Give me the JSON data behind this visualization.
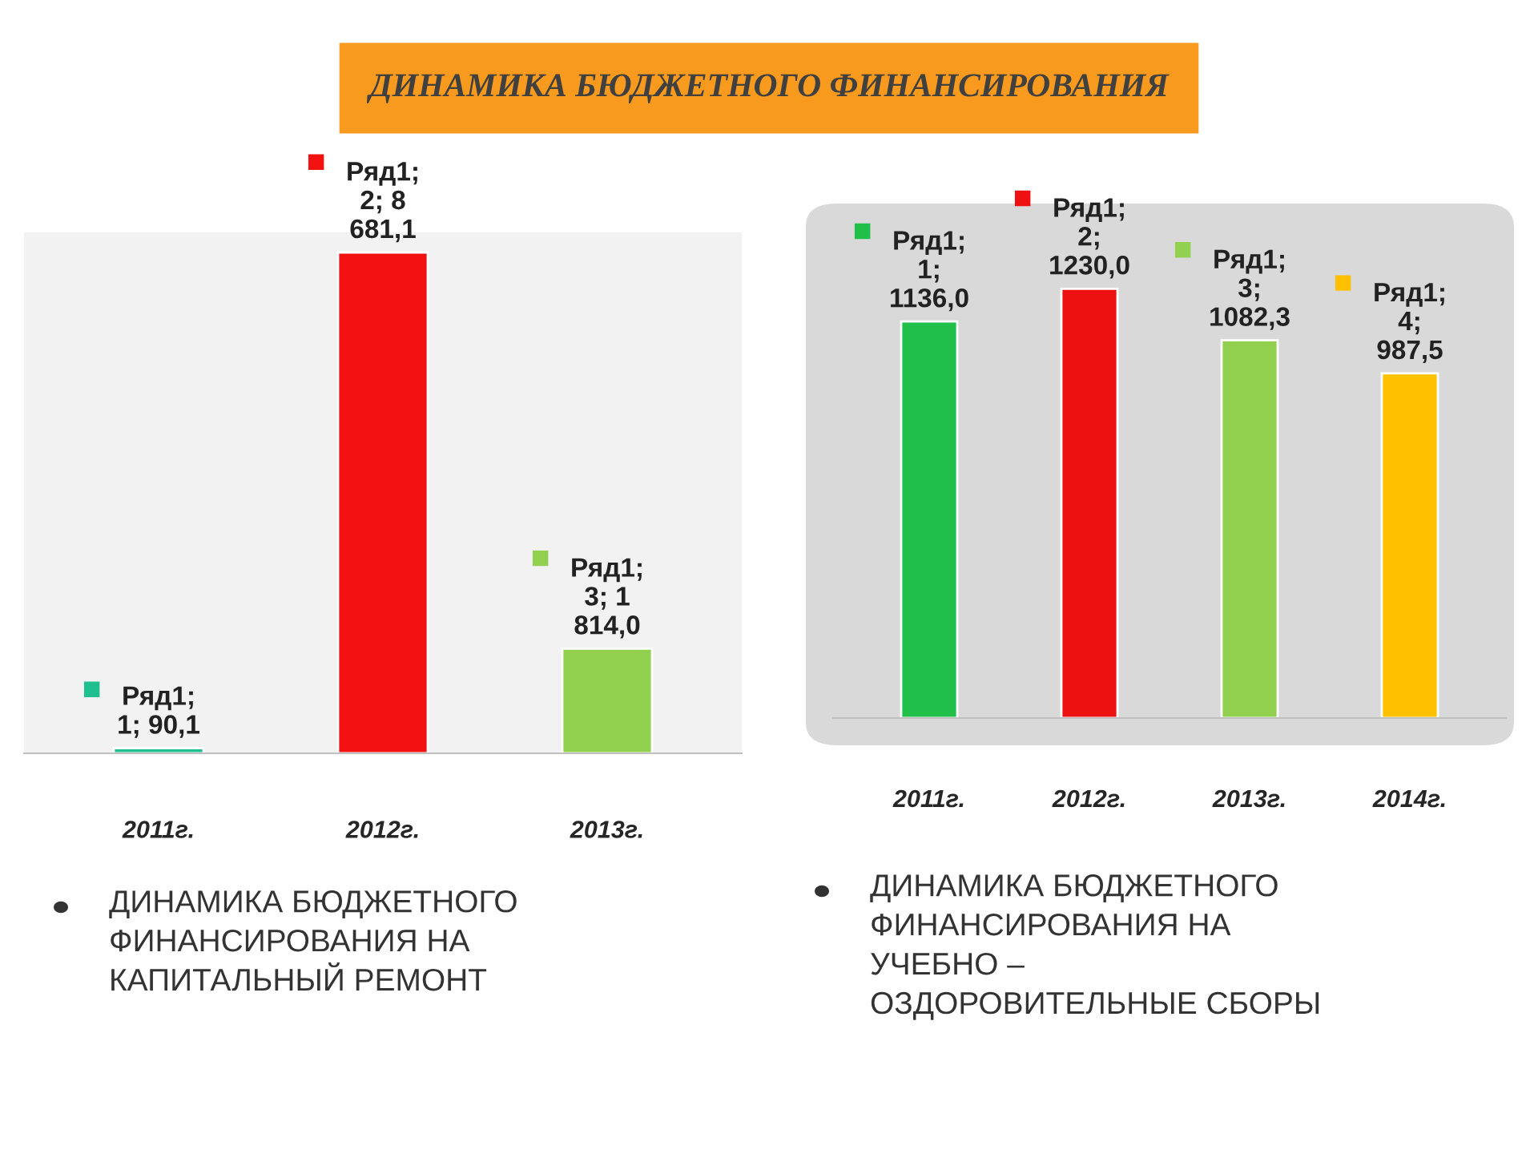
{
  "chart_data": [
    {
      "type": "bar",
      "title": "ДИНАМИКА БЮДЖЕТНОГО ФИНАНСИРОВАНИЯ",
      "categories": [
        "2011г.",
        "2012г.",
        "2013г."
      ],
      "values": [
        90.1,
        8681.1,
        1814.0
      ],
      "colors": [
        "#1fbf8f",
        "#f21212",
        "#92d050"
      ],
      "value_labels": [
        "Ряд1;\n1; 90,1",
        "Ряд1;\n2; 8\n681,1",
        "Ряд1;\n3; 1\n814,0"
      ],
      "annotations": [
        "ДИНАМИКА БЮДЖЕТНОГО\nФИНАНСИРОВАНИЯ НА\nКАПИТАЛЬНЫЙ РЕМОНТ"
      ]
    },
    {
      "type": "bar",
      "categories": [
        "2011г.",
        "2012г.",
        "2013г.",
        "2014г."
      ],
      "values": [
        1136.0,
        1230.0,
        1082.3,
        987.5
      ],
      "colors": [
        "#1fbf4a",
        "#ee1111",
        "#92d050",
        "#ffc000"
      ],
      "value_labels": [
        "Ряд1;\n1;\n1136,0",
        "Ряд1;\n2;\n1230,0",
        "Ряд1;\n3;\n1082,3",
        "Ряд1;\n4;\n987,5"
      ],
      "annotations": [
        "ДИНАМИКА БЮДЖЕТНОГО\nФИНАНСИРОВАНИЯ НА\nУЧЕБНО –\nОЗДОРОВИТЕЛЬНЫЕ СБОРЫ"
      ]
    }
  ]
}
